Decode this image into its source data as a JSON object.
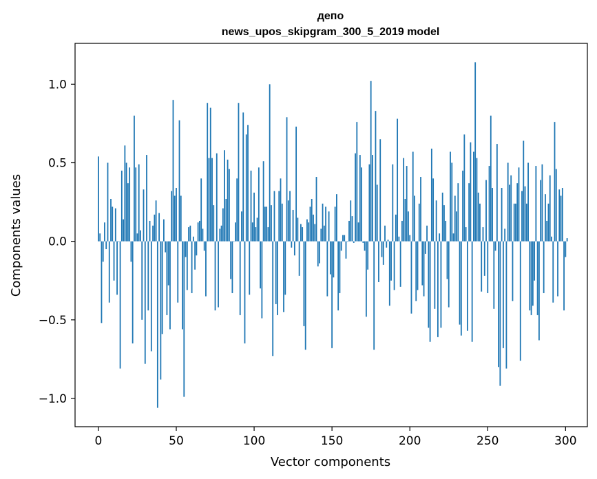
{
  "chart_data": {
    "type": "bar",
    "title": "депо",
    "subtitle": "news_upos_skipgram_300_5_2019 model",
    "xlabel": "Vector components",
    "ylabel": "Components values",
    "xlim": [
      -15,
      314
    ],
    "ylim": [
      -1.18,
      1.26
    ],
    "xticks": [
      0,
      50,
      100,
      150,
      200,
      250,
      300
    ],
    "yticks": [
      -1.0,
      -0.5,
      0.0,
      0.5,
      1.0
    ],
    "ytick_labels": [
      "−1.0",
      "−0.5",
      "0.0",
      "0.5",
      "1.0"
    ],
    "grid": false,
    "bar_color": "#1f77b4",
    "values": [
      0.54,
      0.05,
      -0.52,
      -0.13,
      0.12,
      -0.05,
      0.5,
      -0.39,
      0.27,
      0.22,
      -0.25,
      0.21,
      -0.34,
      0.0,
      -0.81,
      0.45,
      0.14,
      0.61,
      0.5,
      0.37,
      0.47,
      -0.13,
      -0.65,
      0.8,
      0.47,
      0.05,
      0.49,
      0.07,
      -0.5,
      0.33,
      -0.78,
      0.55,
      -0.44,
      0.13,
      -0.7,
      0.1,
      0.17,
      0.26,
      -1.06,
      0.18,
      -0.88,
      -0.59,
      0.14,
      -0.07,
      -0.47,
      -0.28,
      -0.56,
      0.32,
      0.9,
      0.29,
      0.34,
      -0.39,
      0.77,
      0.29,
      -0.56,
      -0.99,
      -0.1,
      -0.31,
      0.09,
      0.1,
      -0.33,
      0.03,
      -0.18,
      -0.09,
      0.12,
      0.13,
      0.4,
      0.08,
      -0.06,
      -0.35,
      0.88,
      0.53,
      0.85,
      0.53,
      0.23,
      -0.44,
      0.56,
      -0.42,
      0.08,
      0.1,
      0.21,
      0.58,
      0.27,
      0.52,
      0.46,
      -0.24,
      -0.33,
      0.0,
      0.12,
      0.4,
      0.88,
      -0.47,
      0.19,
      0.82,
      -0.65,
      0.68,
      0.74,
      -0.34,
      0.45,
      0.12,
      0.31,
      0.09,
      0.15,
      0.47,
      -0.3,
      -0.49,
      0.51,
      0.22,
      0.22,
      0.09,
      1.0,
      0.23,
      -0.73,
      0.32,
      -0.4,
      -0.47,
      0.32,
      0.4,
      0.24,
      -0.45,
      -0.34,
      0.79,
      0.26,
      0.32,
      -0.04,
      0.2,
      -0.09,
      0.73,
      0.15,
      -0.22,
      0.11,
      0.09,
      -0.54,
      -0.69,
      0.14,
      0.12,
      0.22,
      0.27,
      0.17,
      0.11,
      0.41,
      -0.16,
      -0.14,
      0.08,
      0.24,
      0.1,
      0.22,
      -0.35,
      0.19,
      -0.21,
      -0.68,
      -0.23,
      0.22,
      0.3,
      -0.44,
      -0.33,
      -0.06,
      0.04,
      0.04,
      -0.11,
      0.0,
      0.13,
      0.26,
      0.16,
      -0.01,
      0.56,
      0.76,
      0.12,
      0.55,
      0.47,
      -0.01,
      -0.06,
      -0.48,
      -0.18,
      0.49,
      1.02,
      0.55,
      -0.69,
      0.83,
      0.36,
      -0.26,
      0.65,
      -0.1,
      -0.15,
      0.1,
      -0.04,
      0.01,
      -0.41,
      -0.25,
      0.49,
      -0.31,
      0.17,
      0.78,
      0.03,
      -0.29,
      0.13,
      0.53,
      0.27,
      0.48,
      0.19,
      0.04,
      -0.46,
      0.57,
      0.29,
      -0.38,
      -0.31,
      0.24,
      0.41,
      -0.28,
      -0.35,
      -0.08,
      0.1,
      -0.55,
      -0.64,
      0.59,
      0.4,
      -0.43,
      0.26,
      -0.61,
      0.05,
      -0.55,
      0.31,
      0.23,
      0.13,
      -0.24,
      -0.42,
      0.57,
      0.5,
      0.05,
      0.29,
      0.19,
      0.37,
      -0.53,
      -0.6,
      0.45,
      0.68,
      0.09,
      -0.57,
      0.37,
      0.63,
      -0.64,
      0.57,
      1.14,
      0.53,
      0.31,
      0.24,
      -0.32,
      0.09,
      -0.22,
      0.39,
      -0.33,
      0.48,
      0.8,
      0.34,
      -0.43,
      -0.06,
      0.62,
      -0.8,
      -0.92,
      0.34,
      -0.68,
      0.08,
      -0.81,
      0.5,
      0.36,
      0.42,
      -0.38,
      0.24,
      0.24,
      0.37,
      0.47,
      -0.76,
      0.32,
      0.64,
      0.35,
      0.24,
      0.5,
      -0.44,
      -0.47,
      -0.41,
      -0.25,
      0.48,
      -0.47,
      -0.63,
      0.39,
      0.49,
      -0.33,
      0.3,
      0.13,
      0.24,
      0.42,
      0.03,
      -0.39,
      0.76,
      0.46,
      -0.35,
      0.33,
      0.29,
      0.34,
      -0.44,
      -0.1,
      0.02
    ]
  }
}
